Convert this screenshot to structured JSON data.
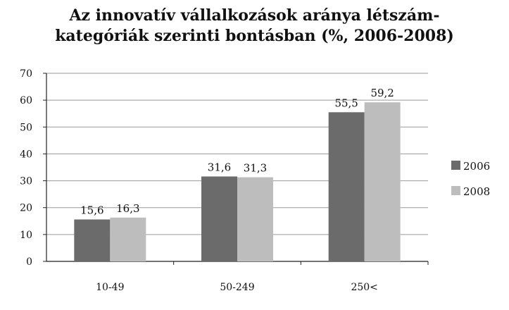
{
  "chart_data": {
    "type": "bar",
    "title": [
      "Az innovatív vállalkozások aránya létszám-",
      "kategóriák szerinti bontásban (%, 2006-2008)"
    ],
    "categories": [
      "10-49",
      "50-249",
      "250<"
    ],
    "series": [
      {
        "name": "2006",
        "values": [
          15.6,
          31.6,
          55.5
        ],
        "labels": [
          "15,6",
          "31,6",
          "55,5"
        ],
        "color": "#6b6b6b"
      },
      {
        "name": "2008",
        "values": [
          16.3,
          31.3,
          59.2
        ],
        "labels": [
          "16,3",
          "31,3",
          "59,2"
        ],
        "color": "#bdbdbd"
      }
    ],
    "ylim": [
      0,
      70
    ],
    "yticks": [
      0,
      10,
      20,
      30,
      40,
      50,
      60,
      70
    ],
    "grid": true,
    "legend": "right",
    "xlabel": "",
    "ylabel": ""
  }
}
